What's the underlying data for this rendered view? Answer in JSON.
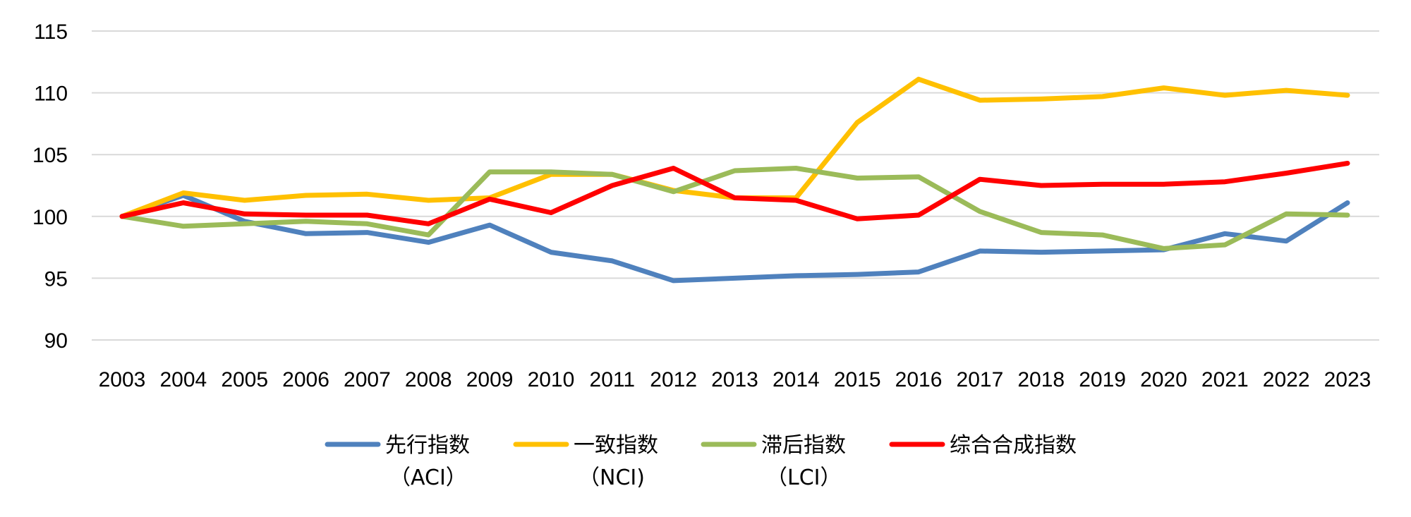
{
  "chart_data": {
    "type": "line",
    "title": "",
    "xlabel": "",
    "ylabel": "",
    "x": [
      "2003",
      "2004",
      "2005",
      "2006",
      "2007",
      "2008",
      "2009",
      "2010",
      "2011",
      "2012",
      "2013",
      "2014",
      "2015",
      "2016",
      "2017",
      "2018",
      "2019",
      "2020",
      "2021",
      "2022",
      "2023"
    ],
    "ylim": [
      90,
      115
    ],
    "yticks": [
      90,
      95,
      100,
      105,
      110,
      115
    ],
    "ytick_labels": [
      "90",
      "95",
      "100",
      "105",
      "110",
      "115"
    ],
    "grid": true,
    "legend_position": "bottom",
    "series": [
      {
        "name": "先行指数",
        "name_line2": "（ACI）",
        "color": "#4f81bd",
        "values": [
          100.0,
          101.7,
          99.6,
          98.6,
          98.7,
          97.9,
          99.3,
          97.1,
          96.4,
          94.8,
          95.0,
          95.2,
          95.3,
          95.5,
          97.2,
          97.1,
          97.2,
          97.3,
          98.6,
          98.0,
          101.1
        ]
      },
      {
        "name": "一致指数",
        "name_line2": "（NCI)",
        "color": "#ffc000",
        "values": [
          100.0,
          101.9,
          101.3,
          101.7,
          101.8,
          101.3,
          101.5,
          103.4,
          103.4,
          102.1,
          101.5,
          101.5,
          107.6,
          111.1,
          109.4,
          109.5,
          109.7,
          110.4,
          109.8,
          110.2,
          109.8
        ]
      },
      {
        "name": "滞后指数",
        "name_line2": "（LCI）",
        "color": "#9bbb59",
        "values": [
          100.0,
          99.2,
          99.4,
          99.6,
          99.4,
          98.5,
          103.6,
          103.6,
          103.4,
          102.0,
          103.7,
          103.9,
          103.1,
          103.2,
          100.4,
          98.7,
          98.5,
          97.4,
          97.7,
          100.2,
          100.1
        ]
      },
      {
        "name": "综合合成指数",
        "name_line2": "",
        "color": "#ff0000",
        "values": [
          100.0,
          101.1,
          100.2,
          100.1,
          100.1,
          99.4,
          101.4,
          100.3,
          102.5,
          103.9,
          101.5,
          101.3,
          99.8,
          100.1,
          103.0,
          102.5,
          102.6,
          102.6,
          102.8,
          103.5,
          104.3
        ]
      }
    ]
  }
}
